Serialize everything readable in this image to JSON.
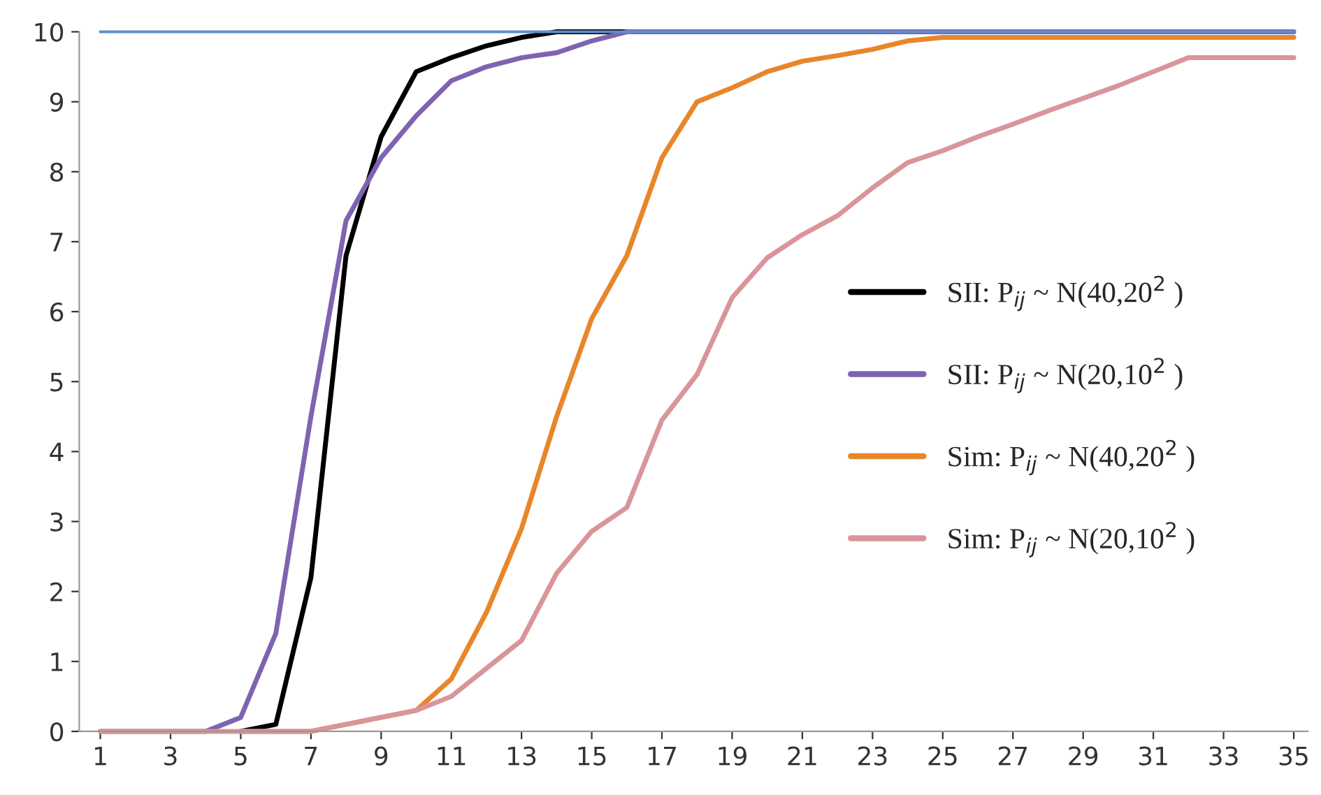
{
  "chart_data": {
    "type": "line",
    "x": [
      1,
      2,
      3,
      4,
      5,
      6,
      7,
      8,
      9,
      10,
      11,
      12,
      13,
      14,
      15,
      16,
      17,
      18,
      19,
      20,
      21,
      22,
      23,
      24,
      25,
      26,
      27,
      28,
      29,
      30,
      31,
      32,
      33,
      34,
      35
    ],
    "series": [
      {
        "name": "SII: P$_{ij}$ ~ N(40,20$^{2}$ )",
        "color": "#000000",
        "values": [
          null,
          null,
          null,
          null,
          0,
          0.1,
          2.2,
          6.8,
          8.5,
          9.43,
          9.63,
          9.8,
          9.92,
          10,
          10,
          10,
          null,
          null,
          null,
          null,
          null,
          null,
          null,
          null,
          null,
          null,
          null,
          null,
          null,
          null,
          null,
          null,
          null,
          null,
          null
        ]
      },
      {
        "name": "SII: P$_{ij}$ ~ N(20,10$^{2}$ )",
        "color": "#7f63b0",
        "values": [
          0,
          0,
          0,
          0,
          0.2,
          1.4,
          4.5,
          7.3,
          8.2,
          8.8,
          9.3,
          9.5,
          9.63,
          9.7,
          9.87,
          10,
          10,
          10,
          10,
          10,
          10,
          10,
          10,
          10,
          10,
          10,
          10,
          10,
          10,
          10,
          10,
          10,
          10,
          10,
          10
        ]
      },
      {
        "name": "Sim: P$_{ij}$ ~ N(40,20$^{2}$ )",
        "color": "#e8862a",
        "values": [
          null,
          null,
          null,
          null,
          0,
          0,
          0,
          0.1,
          0.2,
          0.3,
          0.75,
          1.7,
          2.9,
          4.5,
          5.9,
          6.8,
          8.2,
          9.0,
          9.2,
          9.43,
          9.58,
          9.66,
          9.75,
          9.87,
          9.92,
          9.92,
          9.92,
          9.92,
          9.92,
          9.92,
          9.92,
          9.92,
          9.92,
          9.92,
          9.92
        ]
      },
      {
        "name": "Sim: P$_{ij}$ ~ N(20,10$^{2}$ )",
        "color": "#d9959a",
        "values": [
          0,
          0,
          0,
          0,
          0,
          0,
          0,
          0.1,
          0.2,
          0.3,
          0.5,
          0.9,
          1.3,
          2.26,
          2.86,
          3.2,
          4.45,
          5.1,
          6.2,
          6.77,
          7.1,
          7.37,
          7.77,
          8.13,
          8.3,
          8.5,
          8.68,
          8.87,
          9.05,
          9.23,
          9.43,
          9.63,
          9.63,
          9.63,
          9.63
        ]
      },
      {
        "color": "#5b8fd0",
        "values": [
          10,
          10,
          10,
          10,
          10,
          10,
          10,
          10,
          10,
          10,
          10,
          10,
          10,
          10,
          10,
          10,
          10,
          10,
          10,
          10,
          10,
          10,
          10,
          10,
          10,
          10,
          10,
          10,
          10,
          10,
          10,
          10,
          10,
          10,
          10
        ]
      }
    ],
    "xlim": [
      0.4,
      35.4
    ],
    "xticks": [
      1,
      3,
      5,
      7,
      9,
      11,
      13,
      15,
      17,
      19,
      21,
      23,
      25,
      27,
      29,
      31,
      33,
      35
    ],
    "ylim": [
      0,
      10
    ],
    "yticks": [
      0,
      1,
      2,
      3,
      4,
      5,
      6,
      7,
      8,
      9,
      10
    ],
    "grid": false,
    "legend": "right",
    "line_style": "solid",
    "marker": "none"
  }
}
